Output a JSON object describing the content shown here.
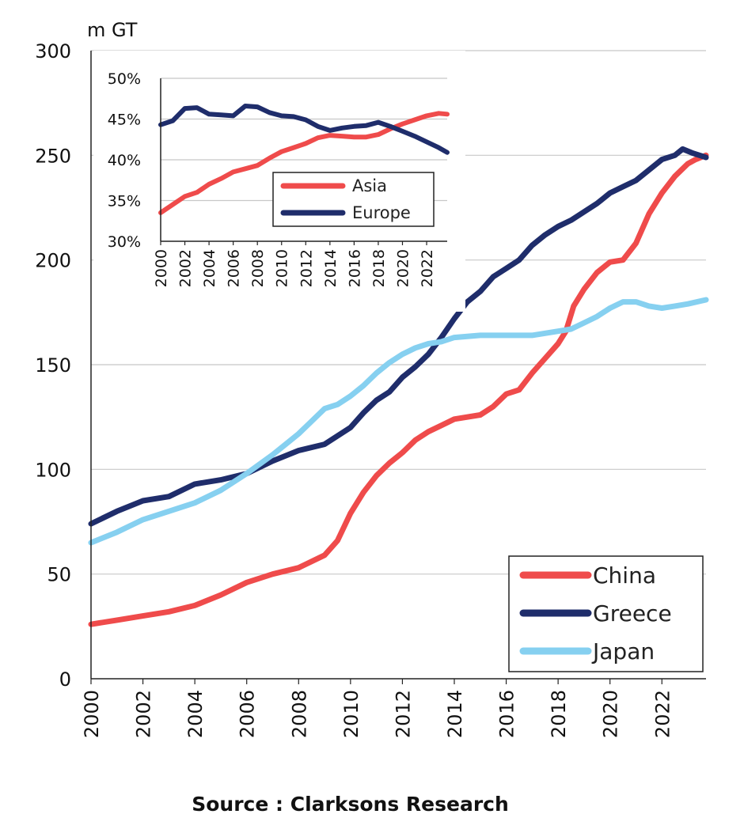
{
  "chart_data": [
    {
      "type": "line",
      "title": "",
      "ylabel": "m GT",
      "xlabel": "",
      "xlim": [
        2000,
        2023.7
      ],
      "ylim": [
        0,
        300
      ],
      "x_ticks": [
        "2000",
        "2002",
        "2004",
        "2006",
        "2008",
        "2010",
        "2012",
        "2014",
        "2016",
        "2018",
        "2020",
        "2022"
      ],
      "y_ticks": [
        "0",
        "50",
        "100",
        "150",
        "200",
        "250",
        "300"
      ],
      "grid": "horizontal",
      "legend_position": "bottom-right",
      "series": [
        {
          "name": "China",
          "color": "#EF4B4B",
          "x": [
            2000,
            2001,
            2002,
            2003,
            2004,
            2005,
            2006,
            2007,
            2008,
            2009,
            2009.5,
            2010,
            2010.5,
            2011,
            2011.5,
            2012,
            2012.5,
            2013,
            2013.5,
            2014,
            2015,
            2015.5,
            2016,
            2016.5,
            2017,
            2017.5,
            2018,
            2018.3,
            2018.6,
            2019,
            2019.5,
            2020,
            2020.5,
            2021,
            2021.5,
            2022,
            2022.5,
            2023,
            2023.3,
            2023.7
          ],
          "y": [
            26,
            28,
            30,
            32,
            35,
            40,
            46,
            50,
            53,
            59,
            66,
            79,
            89,
            97,
            103,
            108,
            114,
            118,
            121,
            124,
            126,
            130,
            136,
            138,
            146,
            153,
            160,
            166,
            178,
            186,
            194,
            199,
            200,
            208,
            222,
            232,
            240,
            246,
            248,
            250
          ]
        },
        {
          "name": "Greece",
          "color": "#1F2D6B",
          "x": [
            2000,
            2001,
            2002,
            2003,
            2004,
            2005,
            2006,
            2007,
            2008,
            2009,
            2010,
            2010.5,
            2011,
            2011.5,
            2012,
            2012.5,
            2013,
            2013.5,
            2014,
            2014.5,
            2015,
            2015.5,
            2016,
            2016.5,
            2017,
            2017.5,
            2018,
            2018.5,
            2019,
            2019.5,
            2020,
            2020.5,
            2021,
            2021.5,
            2022,
            2022.5,
            2022.8,
            2023.2,
            2023.7
          ],
          "y": [
            74,
            80,
            85,
            87,
            93,
            95,
            98,
            104,
            109,
            112,
            120,
            127,
            133,
            137,
            144,
            149,
            155,
            163,
            172,
            180,
            185,
            192,
            196,
            200,
            207,
            212,
            216,
            219,
            223,
            227,
            232,
            235,
            238,
            243,
            248,
            250,
            253,
            251,
            249
          ]
        },
        {
          "name": "Japan",
          "color": "#86D0F0",
          "x": [
            2000,
            2001,
            2002,
            2003,
            2004,
            2005,
            2006,
            2007,
            2007.5,
            2008,
            2008.5,
            2009,
            2009.5,
            2010,
            2010.5,
            2011,
            2011.5,
            2012,
            2012.5,
            2013,
            2013.5,
            2014,
            2015,
            2016,
            2016.5,
            2017,
            2018,
            2018.5,
            2019,
            2019.5,
            2020,
            2020.5,
            2021,
            2021.5,
            2022,
            2022.5,
            2023,
            2023.7
          ],
          "y": [
            65,
            70,
            76,
            80,
            84,
            90,
            98,
            107,
            112,
            117,
            123,
            129,
            131,
            135,
            140,
            146,
            151,
            155,
            158,
            160,
            161,
            163,
            164,
            164,
            164,
            164,
            166,
            167,
            170,
            173,
            177,
            180,
            180,
            178,
            177,
            178,
            179,
            181
          ]
        }
      ]
    },
    {
      "type": "line",
      "title": "",
      "xlabel": "",
      "ylabel": "",
      "xlim": [
        2000,
        2023.7
      ],
      "ylim": [
        30,
        50
      ],
      "x_ticks": [
        "2000",
        "2002",
        "2004",
        "2006",
        "2008",
        "2010",
        "2012",
        "2014",
        "2016",
        "2018",
        "2020",
        "2022"
      ],
      "y_ticks": [
        "30%",
        "35%",
        "40%",
        "45%",
        "50%"
      ],
      "grid": "horizontal",
      "legend_position": "bottom-right",
      "series": [
        {
          "name": "Asia",
          "color": "#EF4B4B",
          "x": [
            2000,
            2002,
            2003,
            2004,
            2005,
            2006,
            2007,
            2008,
            2009,
            2010,
            2011,
            2012,
            2013,
            2014,
            2015,
            2016,
            2017,
            2018,
            2019,
            2020,
            2021,
            2022,
            2023,
            2023.7
          ],
          "y": [
            33.5,
            35.5,
            36,
            37,
            37.7,
            38.5,
            38.9,
            39.3,
            40.2,
            41,
            41.5,
            42,
            42.7,
            43,
            42.9,
            42.8,
            42.8,
            43.1,
            43.8,
            44.4,
            44.9,
            45.4,
            45.7,
            45.6
          ]
        },
        {
          "name": "Europe",
          "color": "#1F2D6B",
          "x": [
            2000,
            2001,
            2002,
            2003,
            2004,
            2005,
            2006,
            2007,
            2008,
            2009,
            2010,
            2011,
            2012,
            2013,
            2014,
            2015,
            2016,
            2017,
            2018,
            2019,
            2020,
            2021,
            2022,
            2023,
            2023.7
          ],
          "y": [
            44.3,
            44.8,
            46.3,
            46.4,
            45.6,
            45.5,
            45.4,
            46.6,
            46.5,
            45.8,
            45.4,
            45.3,
            44.9,
            44.1,
            43.6,
            43.9,
            44.1,
            44.2,
            44.6,
            44.1,
            43.5,
            42.9,
            42.2,
            41.5,
            40.9
          ]
        }
      ]
    }
  ],
  "source_text": "Source : Clarksons Research"
}
